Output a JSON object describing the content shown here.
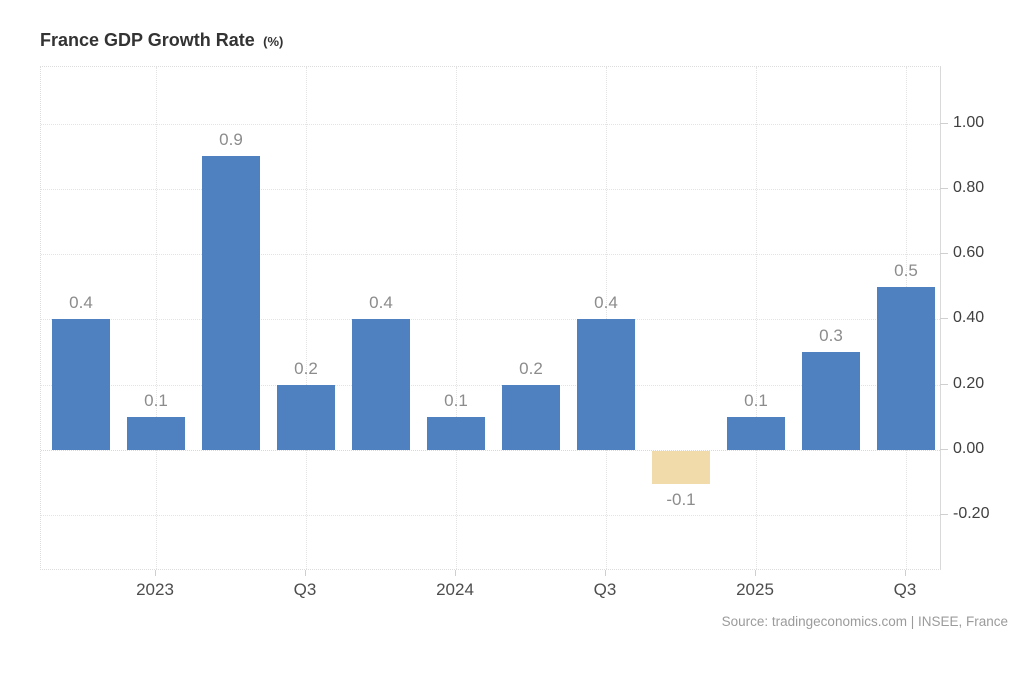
{
  "title": {
    "main": "France GDP Growth Rate",
    "suffix": "(%)"
  },
  "source": "Source: tradingeconomics.com | INSEE, France",
  "chart_data": {
    "type": "bar",
    "title": "France GDP Growth Rate (%)",
    "values": [
      0.4,
      0.1,
      0.9,
      0.2,
      0.4,
      0.1,
      0.2,
      0.4,
      -0.1,
      0.1,
      0.3,
      0.5
    ],
    "bar_labels": [
      "0.4",
      "0.1",
      "0.9",
      "0.2",
      "0.4",
      "0.1",
      "0.2",
      "0.4",
      "-0.1",
      "0.1",
      "0.3",
      "0.5"
    ],
    "x_ticks": [
      {
        "label": "2023",
        "bar_index": 1
      },
      {
        "label": "Q3",
        "bar_index": 3
      },
      {
        "label": "2024",
        "bar_index": 5
      },
      {
        "label": "Q3",
        "bar_index": 7
      },
      {
        "label": "2025",
        "bar_index": 9
      },
      {
        "label": "Q3",
        "bar_index": 11
      }
    ],
    "y_ticks": [
      {
        "label": "1.00",
        "value": 1.0
      },
      {
        "label": "0.80",
        "value": 0.8
      },
      {
        "label": "0.60",
        "value": 0.6
      },
      {
        "label": "0.40",
        "value": 0.4
      },
      {
        "label": "0.20",
        "value": 0.2
      },
      {
        "label": "0.00",
        "value": 0.0
      },
      {
        "label": "-0.20",
        "value": -0.2
      }
    ],
    "ylim": [
      -0.37,
      1.17
    ],
    "grid": true,
    "legend": "none",
    "colors": {
      "positive_bar": "#4f80bf",
      "negative_bar": "#f2dbab"
    }
  }
}
